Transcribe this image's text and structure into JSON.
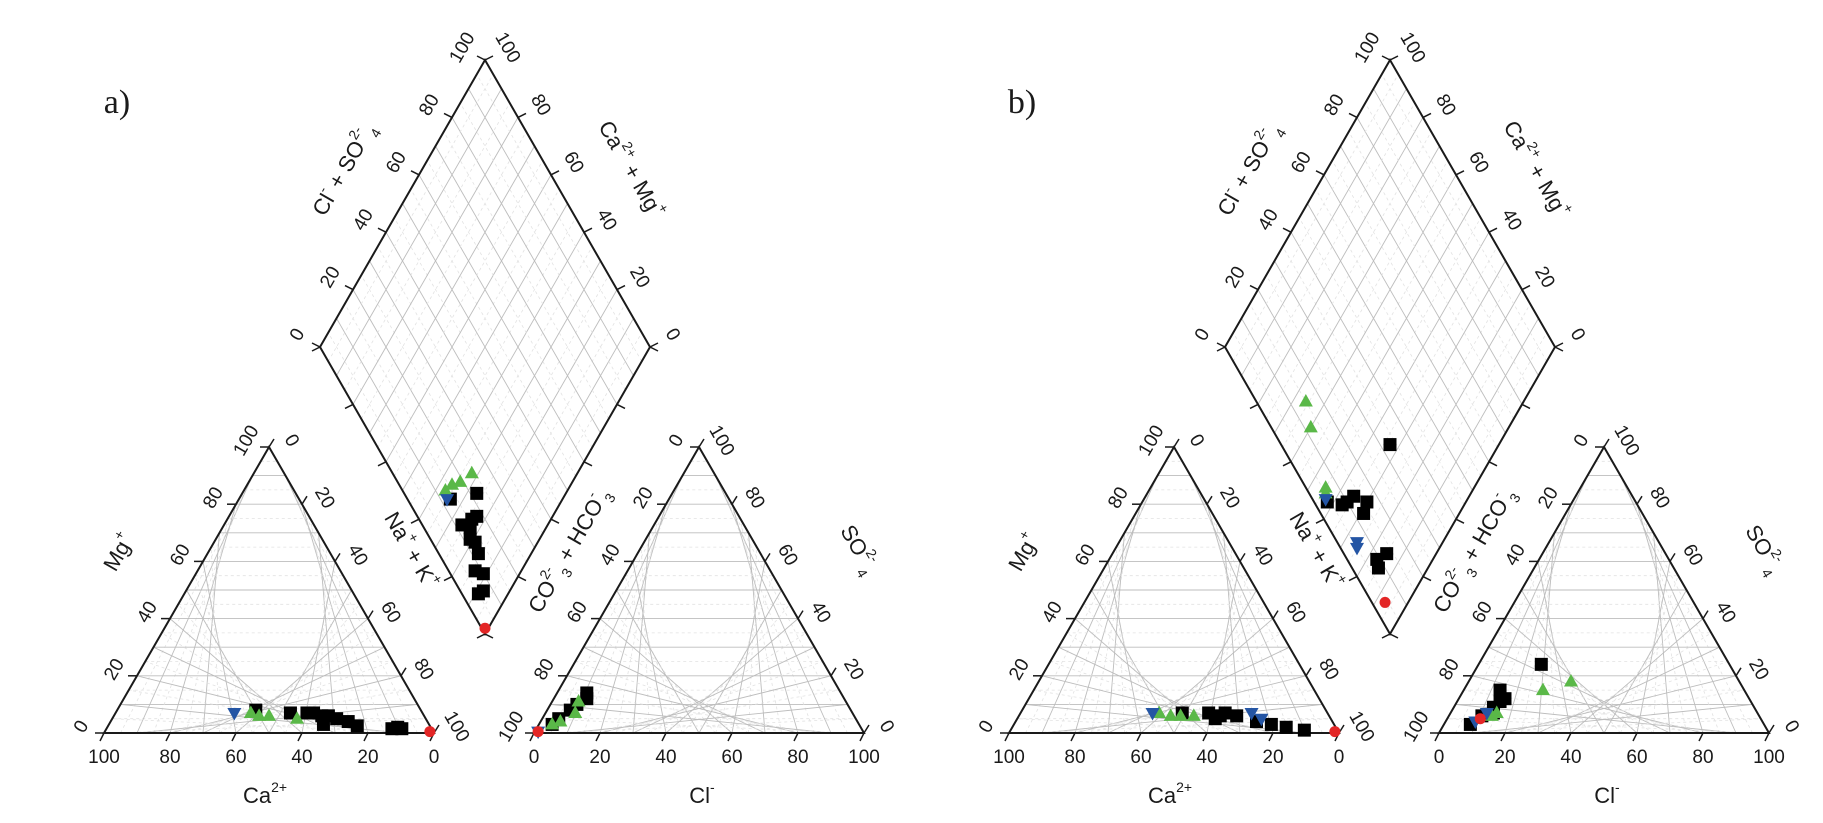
{
  "chart_data": [
    {
      "type": "scatter",
      "panel_label": "a)",
      "colors": {
        "square": "#000000",
        "triangle_up": "#5ab848",
        "triangle_down": "#2455a4",
        "circle": "#e32626"
      },
      "cation_triangle": {
        "x_title": "Ca2+",
        "y_title": "Mg+",
        "ticks": [
          "0",
          "20",
          "40",
          "60",
          "80",
          "100"
        ],
        "points": [
          {
            "shape": "square",
            "ca": 9,
            "mg": 1.5
          },
          {
            "shape": "square",
            "ca": 10,
            "mg": 2
          },
          {
            "shape": "square",
            "ca": 12,
            "mg": 1.5
          },
          {
            "shape": "square",
            "ca": 22,
            "mg": 2.5
          },
          {
            "shape": "square",
            "ca": 24,
            "mg": 4
          },
          {
            "shape": "square",
            "ca": 27,
            "mg": 5
          },
          {
            "shape": "square",
            "ca": 29,
            "mg": 6
          },
          {
            "shape": "square",
            "ca": 31,
            "mg": 6
          },
          {
            "shape": "square",
            "ca": 33,
            "mg": 7
          },
          {
            "shape": "square",
            "ca": 35,
            "mg": 7
          },
          {
            "shape": "square",
            "ca": 32,
            "mg": 3
          },
          {
            "shape": "square",
            "ca": 40,
            "mg": 7
          },
          {
            "shape": "square",
            "ca": 50,
            "mg": 8
          },
          {
            "shape": "triangle_up",
            "ca": 39,
            "mg": 5
          },
          {
            "shape": "triangle_up",
            "ca": 47,
            "mg": 6
          },
          {
            "shape": "triangle_up",
            "ca": 50,
            "mg": 6
          },
          {
            "shape": "triangle_up",
            "ca": 52,
            "mg": 7
          },
          {
            "shape": "triangle_down",
            "ca": 57,
            "mg": 7
          },
          {
            "shape": "circle",
            "ca": 1,
            "mg": 0.5
          }
        ]
      },
      "anion_triangle": {
        "x_title": "Cl-",
        "y_title": "SO42-",
        "ticks": [
          "0",
          "20",
          "40",
          "60",
          "80",
          "100"
        ],
        "points": [
          {
            "shape": "square",
            "cl": 9,
            "so4": 14
          },
          {
            "shape": "square",
            "cl": 10,
            "so4": 12
          },
          {
            "shape": "square",
            "cl": 8,
            "so4": 10
          },
          {
            "shape": "square",
            "cl": 7,
            "so4": 8
          },
          {
            "shape": "square",
            "cl": 5,
            "so4": 5
          },
          {
            "shape": "square",
            "cl": 4,
            "so4": 3
          },
          {
            "shape": "triangle_up",
            "cl": 8,
            "so4": 11
          },
          {
            "shape": "triangle_up",
            "cl": 9,
            "so4": 7
          },
          {
            "shape": "triangle_up",
            "cl": 6,
            "so4": 4
          },
          {
            "shape": "triangle_up",
            "cl": 4,
            "so4": 3
          },
          {
            "shape": "triangle_down",
            "cl": 1,
            "so4": 0.5
          },
          {
            "shape": "circle",
            "cl": 1,
            "so4": 0.5
          }
        ]
      },
      "diamond": {
        "titles": [
          "Cl- + SO42-",
          "Ca2+ + Mg+",
          "Na+ + K+",
          "CO32- + HCO3-"
        ],
        "ticks": [
          "0",
          "20",
          "40",
          "60",
          "80",
          "100"
        ],
        "points": [
          {
            "shape": "circle",
            "x": 99,
            "y": 1
          },
          {
            "shape": "square",
            "x": 92,
            "y": 7
          },
          {
            "shape": "square",
            "x": 91,
            "y": 5
          },
          {
            "shape": "square",
            "x": 89,
            "y": 10
          },
          {
            "shape": "square",
            "x": 86,
            "y": 8
          },
          {
            "shape": "square",
            "x": 84,
            "y": 12
          },
          {
            "shape": "square",
            "x": 81,
            "y": 13
          },
          {
            "shape": "square",
            "x": 79,
            "y": 12
          },
          {
            "shape": "square",
            "x": 77,
            "y": 18
          },
          {
            "shape": "square",
            "x": 77,
            "y": 14
          },
          {
            "shape": "square",
            "x": 76,
            "y": 16
          },
          {
            "shape": "square",
            "x": 74,
            "y": 12
          },
          {
            "shape": "square",
            "x": 73,
            "y": 22
          },
          {
            "shape": "square",
            "x": 66,
            "y": 13
          },
          {
            "shape": "triangle_up",
            "x": 68,
            "y": 24
          },
          {
            "shape": "triangle_up",
            "x": 66,
            "y": 19
          },
          {
            "shape": "triangle_up",
            "x": 64,
            "y": 16
          },
          {
            "shape": "triangle_up",
            "x": 63,
            "y": 13
          },
          {
            "shape": "triangle_down",
            "x": 65,
            "y": 12
          }
        ]
      }
    },
    {
      "type": "scatter",
      "panel_label": "b)",
      "colors": {
        "square": "#000000",
        "triangle_up": "#5ab848",
        "triangle_down": "#2455a4",
        "circle": "#e32626"
      },
      "cation_triangle": {
        "x_title": "Ca2+",
        "y_title": "Mg+",
        "ticks": [
          "0",
          "20",
          "40",
          "60",
          "80",
          "100"
        ],
        "points": [
          {
            "shape": "square",
            "ca": 10,
            "mg": 1
          },
          {
            "shape": "square",
            "ca": 15,
            "mg": 2
          },
          {
            "shape": "square",
            "ca": 19,
            "mg": 3
          },
          {
            "shape": "square",
            "ca": 23,
            "mg": 4
          },
          {
            "shape": "square",
            "ca": 28,
            "mg": 6
          },
          {
            "shape": "square",
            "ca": 31,
            "mg": 7
          },
          {
            "shape": "square",
            "ca": 33,
            "mg": 6
          },
          {
            "shape": "square",
            "ca": 35,
            "mg": 5
          },
          {
            "shape": "square",
            "ca": 36,
            "mg": 7
          },
          {
            "shape": "square",
            "ca": 44,
            "mg": 7
          },
          {
            "shape": "triangle_up",
            "ca": 41,
            "mg": 6
          },
          {
            "shape": "triangle_up",
            "ca": 45,
            "mg": 6
          },
          {
            "shape": "triangle_up",
            "ca": 48,
            "mg": 6
          },
          {
            "shape": "triangle_up",
            "ca": 51,
            "mg": 7
          },
          {
            "shape": "triangle_down",
            "ca": 21,
            "mg": 5
          },
          {
            "shape": "triangle_down",
            "ca": 23,
            "mg": 7
          },
          {
            "shape": "triangle_down",
            "ca": 53,
            "mg": 7
          },
          {
            "shape": "circle",
            "ca": 1,
            "mg": 0.5
          }
        ]
      },
      "anion_triangle": {
        "x_title": "Cl-",
        "y_title": "SO42-",
        "ticks": [
          "0",
          "20",
          "40",
          "60",
          "80",
          "100"
        ],
        "points": [
          {
            "shape": "square",
            "cl": 8,
            "so4": 3
          },
          {
            "shape": "square",
            "cl": 10,
            "so4": 6
          },
          {
            "shape": "square",
            "cl": 12,
            "so4": 9
          },
          {
            "shape": "square",
            "cl": 13,
            "so4": 11
          },
          {
            "shape": "square",
            "cl": 11,
            "so4": 15
          },
          {
            "shape": "square",
            "cl": 14,
            "so4": 12
          },
          {
            "shape": "square",
            "cl": 13,
            "so4": 7
          },
          {
            "shape": "square",
            "cl": 19,
            "so4": 24
          },
          {
            "shape": "triangle_up",
            "cl": 14,
            "so4": 7
          },
          {
            "shape": "triangle_up",
            "cl": 13,
            "so4": 6
          },
          {
            "shape": "triangle_up",
            "cl": 24,
            "so4": 15
          },
          {
            "shape": "triangle_up",
            "cl": 31,
            "so4": 18
          },
          {
            "shape": "triangle_down",
            "cl": 9,
            "so4": 4
          },
          {
            "shape": "triangle_down",
            "cl": 11,
            "so4": 7
          },
          {
            "shape": "circle",
            "cl": 10,
            "so4": 5
          }
        ]
      },
      "diamond": {
        "titles": [
          "Cl- + SO42-",
          "Ca2+ + Mg+",
          "Na+ + K+",
          "CO32- + HCO3-"
        ],
        "ticks": [
          "0",
          "20",
          "40",
          "60",
          "80",
          "100"
        ],
        "points": [
          {
            "shape": "circle",
            "x": 93,
            "y": 4
          },
          {
            "shape": "square",
            "x": 85,
            "y": 13
          },
          {
            "shape": "square",
            "x": 85,
            "y": 8
          },
          {
            "shape": "square",
            "x": 83,
            "y": 9
          },
          {
            "shape": "square",
            "x": 70,
            "y": 16
          },
          {
            "shape": "square",
            "x": 71,
            "y": 13
          },
          {
            "shape": "square",
            "x": 65,
            "y": 13
          },
          {
            "shape": "square",
            "x": 64,
            "y": 10
          },
          {
            "shape": "square",
            "x": 63,
            "y": 8
          },
          {
            "shape": "square",
            "x": 58,
            "y": 4
          },
          {
            "shape": "square",
            "x": 67,
            "y": 33
          },
          {
            "shape": "triangle_up",
            "x": 34,
            "y": 15
          },
          {
            "shape": "triangle_up",
            "x": 40,
            "y": 12
          },
          {
            "shape": "triangle_up",
            "x": 55,
            "y": 6
          },
          {
            "shape": "triangle_up",
            "x": 56,
            "y": 5
          },
          {
            "shape": "triangle_down",
            "x": 57,
            "y": 4
          },
          {
            "shape": "triangle_down",
            "x": 74,
            "y": 6
          },
          {
            "shape": "triangle_down",
            "x": 75,
            "y": 5
          }
        ]
      }
    }
  ],
  "text": {
    "panel_a": "a)",
    "panel_b": "b)",
    "ca_title": "Ca",
    "ca_sup": "2+",
    "mg_title": "Mg",
    "mg_sup": "+",
    "cl_title": "Cl",
    "cl_sup": "-",
    "so4_title": "SO",
    "so4_sup": "2-",
    "so4_sub": "4",
    "diamond_ul": "Cl",
    "diamond_ul_sup": "-",
    "diamond_ul_rest": " + SO",
    "diamond_ul_sup2": "2-",
    "diamond_ul_sub2": "4",
    "diamond_ur": "Ca",
    "diamond_ur_sup": "2+",
    "diamond_ur_rest": " + Mg",
    "diamond_ur_sup2": "+",
    "diamond_ll": "Na",
    "diamond_ll_sup": "+",
    "diamond_ll_rest": " + K",
    "diamond_ll_sup2": "+",
    "diamond_lr": "CO",
    "diamond_lr_sup": "2-",
    "diamond_lr_sub": "3",
    "diamond_lr_rest": " + HCO",
    "diamond_lr_sup2": "-",
    "diamond_lr_sub2": "3"
  }
}
